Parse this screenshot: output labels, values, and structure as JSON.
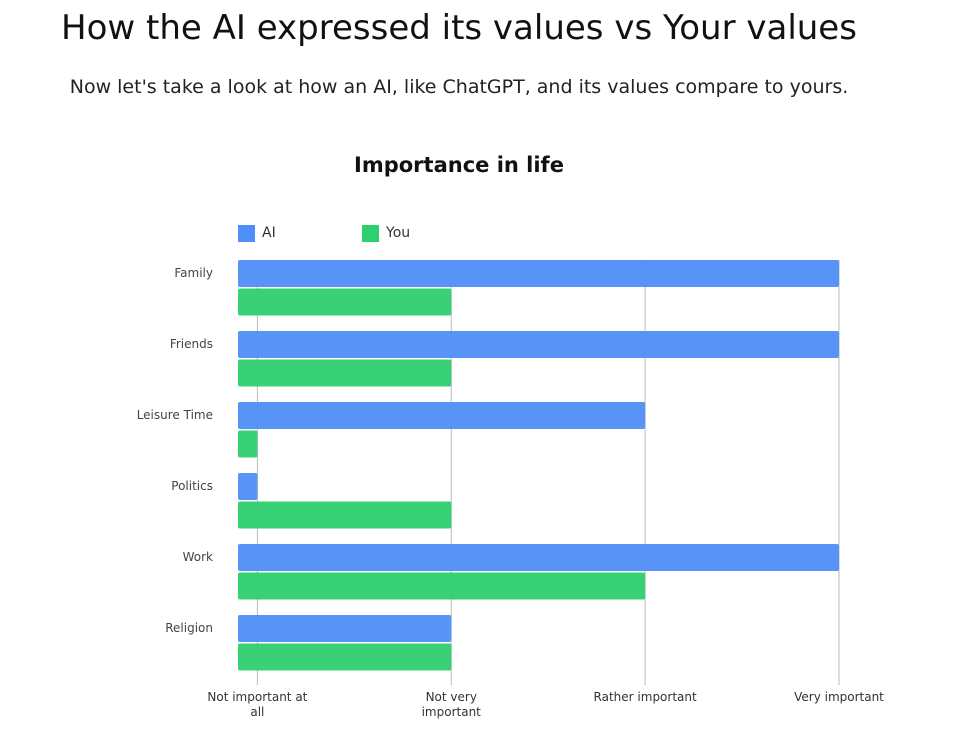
{
  "title": "How the AI expressed its values vs Your values",
  "subtitle": "Now let's take a look at how an AI, like ChatGPT, and its values compare to yours.",
  "chart_data": {
    "type": "bar",
    "orientation": "horizontal",
    "title": "Importance in life",
    "categories": [
      "Family",
      "Friends",
      "Leisure Time",
      "Politics",
      "Work",
      "Religion"
    ],
    "series": [
      {
        "name": "AI",
        "color": "#4f8ef8",
        "values": [
          4,
          4,
          3,
          1,
          4,
          2
        ]
      },
      {
        "name": "You",
        "color": "#2ecf6e",
        "values": [
          2,
          2,
          1,
          2,
          3,
          2
        ]
      }
    ],
    "xlim": [
      0.9,
      4
    ],
    "xticks": [
      {
        "value": 1,
        "label": "Not important at all"
      },
      {
        "value": 2,
        "label": "Not very important"
      },
      {
        "value": 3,
        "label": "Rather important"
      },
      {
        "value": 4,
        "label": "Very important"
      }
    ],
    "grid": true,
    "legend": "top"
  }
}
